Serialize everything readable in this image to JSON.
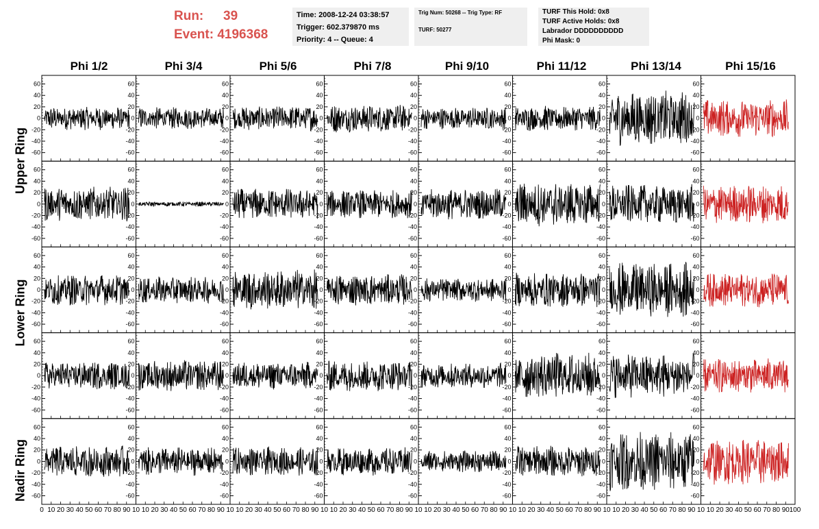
{
  "header": {
    "run_label": "Run:",
    "run_value": "39",
    "event_label": "Event:",
    "event_value": "4196368",
    "time": "Time: 2008-12-24 03:38:57",
    "trigger": "Trigger: 602.379870 ms",
    "priority": "Priority: 4 -- Queue: 4",
    "trig_num": "Trig Num: 50268 -- Trig Type: RF",
    "turf": "TURF: 50277",
    "turf_this_hold": "TURF This Hold: 0x8",
    "turf_active_holds": "TURF Active Holds: 0x8",
    "labrador": "Labrador DDDDDDDDDD",
    "phi_mask": "Phi Mask: 0"
  },
  "columns": [
    "Phi 1/2",
    "Phi 3/4",
    "Phi 5/6",
    "Phi 7/8",
    "Phi 9/10",
    "Phi 11/12",
    "Phi 13/14",
    "Phi 15/16"
  ],
  "rings": [
    "Upper Ring",
    "Lower Ring",
    "Nadir Ring"
  ],
  "colors": {
    "run_info": "#d9534f",
    "trace_normal": "#000000",
    "trace_highlight": "#cc2222",
    "box_bg": "#efefef"
  },
  "chart_data": {
    "type": "line",
    "ylim": [
      -75,
      75
    ],
    "y_ticks": [
      -60,
      -40,
      -20,
      0,
      20,
      40,
      60
    ],
    "xlim": [
      0,
      100
    ],
    "x_ticks": [
      0,
      10,
      20,
      30,
      40,
      50,
      60,
      70,
      80,
      90,
      100
    ],
    "x_tick_labels_row": "0 10 20 30 40 50 60 70 80 90 10 10 20 30 40 50 60 70 80 90 10 10 20 30 40 50 60 70 80 90 10 10 20 30 40 50 60 70 80 90 10 10 20 30 40 50 60 70 80 90 10 10 20 30 40 50 60 70 80 90 10 10 20 30 40 50 60 70 80 90 10 10 20 30 40 50 60 70 80 90 100",
    "highlight_column": "Phi 15/16",
    "panel_amplitudes": [
      [
        15,
        14,
        16,
        18,
        14,
        16,
        35,
        24
      ],
      [
        22,
        3,
        20,
        18,
        20,
        28,
        25,
        25
      ],
      [
        20,
        17,
        26,
        20,
        15,
        22,
        35,
        22
      ],
      [
        18,
        20,
        18,
        20,
        16,
        30,
        28,
        22
      ],
      [
        20,
        18,
        18,
        18,
        14,
        20,
        38,
        30
      ]
    ]
  }
}
